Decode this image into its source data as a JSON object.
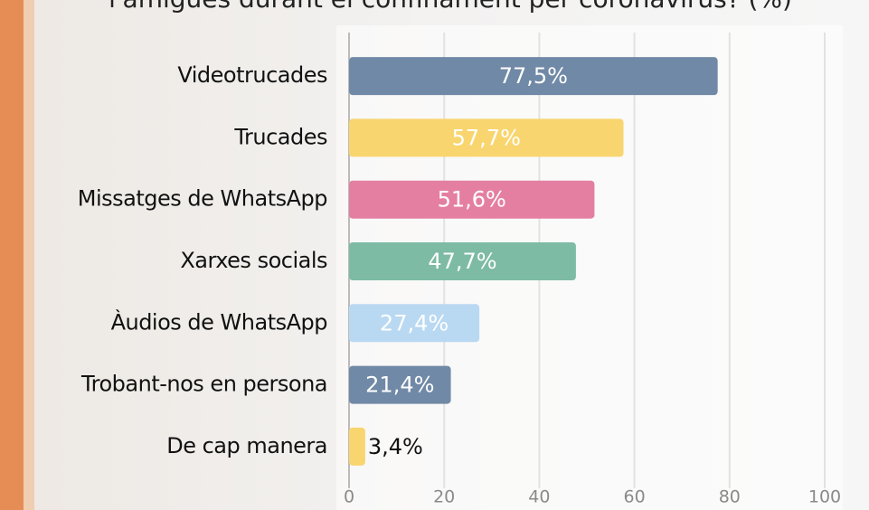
{
  "chart_data": {
    "type": "hbar",
    "title": "l'amigues durant el confinament per coronavirus? (%)",
    "categories": [
      "Videotrucades",
      "Trucades",
      "Missatges de WhatsApp",
      "Xarxes socials",
      "Àudios de WhatsApp",
      "Trobant-nos en persona",
      "De cap manera"
    ],
    "values": [
      77.5,
      57.7,
      51.6,
      47.7,
      27.4,
      21.4,
      3.4
    ],
    "value_labels": [
      "77,5%",
      "57,7%",
      "51,6%",
      "47,7%",
      "27,4%",
      "21,4%",
      "3,4%"
    ],
    "colors": [
      "#7089a6",
      "#f8d56e",
      "#e47fa2",
      "#7dbba5",
      "#b9d8f2",
      "#7089a6",
      "#f8d56e"
    ],
    "xlim": [
      0,
      100
    ],
    "xticks": [
      0,
      20,
      40,
      60,
      80,
      100
    ],
    "grid": true
  }
}
